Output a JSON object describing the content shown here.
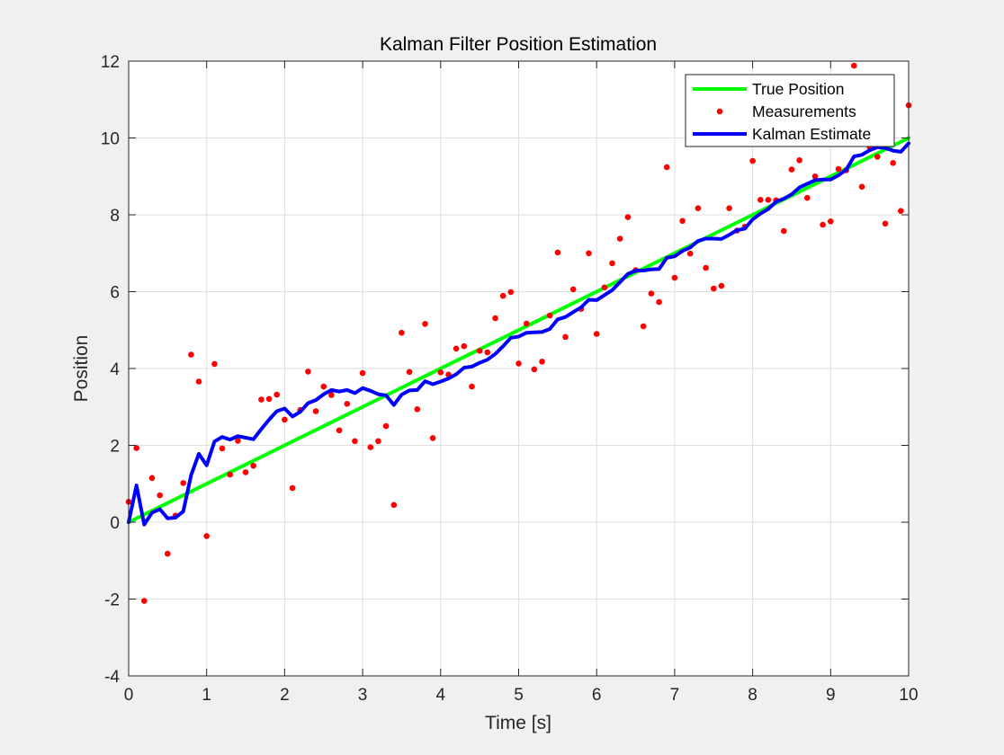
{
  "chart_data": {
    "type": "line",
    "title": "Kalman Filter Position Estimation",
    "xlabel": "Time [s]",
    "ylabel": "Position",
    "xlim": [
      0,
      10
    ],
    "ylim": [
      -4,
      12
    ],
    "xticks": [
      0,
      1,
      2,
      3,
      4,
      5,
      6,
      7,
      8,
      9,
      10
    ],
    "yticks": [
      -4,
      -2,
      0,
      2,
      4,
      6,
      8,
      10,
      12
    ],
    "grid": true,
    "legend_position": "top-right",
    "series": [
      {
        "name": "True Position",
        "style": "line",
        "color": "#00ff00",
        "x": [
          0,
          10
        ],
        "y": [
          0,
          10
        ]
      },
      {
        "name": "Measurements",
        "style": "markers",
        "color": "#ff0000",
        "x": [
          0.0,
          0.1,
          0.2,
          0.3,
          0.4,
          0.5,
          0.6,
          0.7,
          0.8,
          0.9,
          1.0,
          1.1,
          1.2,
          1.3,
          1.4,
          1.5,
          1.6,
          1.7,
          1.8,
          1.9,
          2.0,
          2.1,
          2.2,
          2.3,
          2.4,
          2.5,
          2.6,
          2.7,
          2.8,
          2.9,
          3.0,
          3.1,
          3.2,
          3.3,
          3.4,
          3.5,
          3.6,
          3.7,
          3.8,
          3.9,
          4.0,
          4.1,
          4.2,
          4.3,
          4.4,
          4.5,
          4.6,
          4.7,
          4.8,
          4.9,
          5.0,
          5.1,
          5.2,
          5.3,
          5.4,
          5.5,
          5.6,
          5.7,
          5.8,
          5.9,
          6.0,
          6.1,
          6.2,
          6.3,
          6.4,
          6.5,
          6.6,
          6.7,
          6.8,
          6.9,
          7.0,
          7.1,
          7.2,
          7.3,
          7.4,
          7.5,
          7.6,
          7.7,
          7.8,
          7.9,
          8.0,
          8.1,
          8.2,
          8.3,
          8.4,
          8.5,
          8.6,
          8.7,
          8.8,
          8.9,
          9.0,
          9.1,
          9.2,
          9.3,
          9.4,
          9.5,
          9.6,
          9.7,
          9.8,
          9.9,
          10.0
        ],
        "y": [
          0.53,
          1.93,
          -2.05,
          1.15,
          0.7,
          -0.82,
          0.17,
          1.02,
          4.36,
          3.66,
          -0.36,
          4.12,
          1.92,
          1.24,
          2.12,
          1.3,
          1.47,
          3.19,
          3.21,
          3.32,
          2.67,
          0.89,
          2.92,
          3.92,
          2.89,
          3.53,
          3.31,
          2.39,
          3.08,
          2.11,
          3.88,
          1.95,
          2.11,
          2.5,
          0.45,
          4.93,
          3.91,
          2.94,
          5.16,
          2.19,
          3.9,
          3.84,
          4.52,
          4.58,
          3.53,
          4.46,
          4.42,
          5.31,
          5.89,
          5.99,
          4.13,
          5.17,
          3.98,
          4.18,
          5.38,
          7.02,
          4.82,
          6.06,
          5.55,
          7.0,
          4.9,
          6.11,
          6.74,
          7.38,
          7.94,
          6.56,
          5.1,
          5.95,
          5.73,
          9.24,
          6.36,
          7.84,
          6.99,
          8.17,
          6.62,
          6.08,
          6.15,
          8.17,
          7.59,
          7.69,
          9.4,
          8.39,
          8.39,
          8.38,
          7.58,
          9.18,
          9.42,
          8.44,
          9.0,
          7.74,
          7.83,
          9.19,
          9.16,
          11.88,
          8.73,
          9.77,
          9.51,
          7.77,
          9.35,
          8.1,
          10.85
        ]
      },
      {
        "name": "Kalman Estimate",
        "style": "line",
        "color": "#0000ff",
        "x": [
          0.0,
          0.1,
          0.2,
          0.3,
          0.4,
          0.5,
          0.6,
          0.7,
          0.8,
          0.9,
          1.0,
          1.1,
          1.2,
          1.3,
          1.4,
          1.5,
          1.6,
          1.7,
          1.8,
          1.9,
          2.0,
          2.1,
          2.2,
          2.3,
          2.4,
          2.5,
          2.6,
          2.7,
          2.8,
          2.9,
          3.0,
          3.1,
          3.2,
          3.3,
          3.4,
          3.5,
          3.6,
          3.7,
          3.8,
          3.9,
          4.0,
          4.1,
          4.2,
          4.3,
          4.4,
          4.5,
          4.6,
          4.7,
          4.8,
          4.9,
          5.0,
          5.1,
          5.2,
          5.3,
          5.4,
          5.5,
          5.6,
          5.7,
          5.8,
          5.9,
          6.0,
          6.1,
          6.2,
          6.3,
          6.4,
          6.5,
          6.6,
          6.7,
          6.8,
          6.9,
          7.0,
          7.1,
          7.2,
          7.3,
          7.4,
          7.5,
          7.6,
          7.7,
          7.8,
          7.9,
          8.0,
          8.1,
          8.2,
          8.3,
          8.4,
          8.5,
          8.6,
          8.7,
          8.8,
          8.9,
          9.0,
          9.1,
          9.2,
          9.3,
          9.4,
          9.5,
          9.6,
          9.7,
          9.8,
          9.9,
          10.0
        ],
        "y": [
          0.0,
          0.96,
          -0.06,
          0.25,
          0.34,
          0.1,
          0.12,
          0.28,
          1.22,
          1.78,
          1.48,
          2.1,
          2.22,
          2.15,
          2.24,
          2.2,
          2.16,
          2.42,
          2.67,
          2.89,
          2.96,
          2.75,
          2.87,
          3.1,
          3.18,
          3.33,
          3.44,
          3.4,
          3.44,
          3.36,
          3.49,
          3.42,
          3.33,
          3.3,
          3.05,
          3.32,
          3.43,
          3.44,
          3.67,
          3.59,
          3.66,
          3.74,
          3.85,
          4.02,
          4.05,
          4.15,
          4.23,
          4.38,
          4.58,
          4.8,
          4.83,
          4.93,
          4.94,
          4.95,
          5.03,
          5.28,
          5.34,
          5.47,
          5.59,
          5.79,
          5.78,
          5.91,
          6.04,
          6.25,
          6.46,
          6.55,
          6.55,
          6.58,
          6.59,
          6.88,
          6.92,
          7.06,
          7.15,
          7.32,
          7.38,
          7.38,
          7.37,
          7.48,
          7.6,
          7.64,
          7.88,
          8.03,
          8.15,
          8.34,
          8.42,
          8.53,
          8.71,
          8.81,
          8.9,
          8.92,
          8.92,
          9.03,
          9.17,
          9.52,
          9.56,
          9.68,
          9.76,
          9.74,
          9.67,
          9.64,
          9.86
        ]
      }
    ]
  }
}
